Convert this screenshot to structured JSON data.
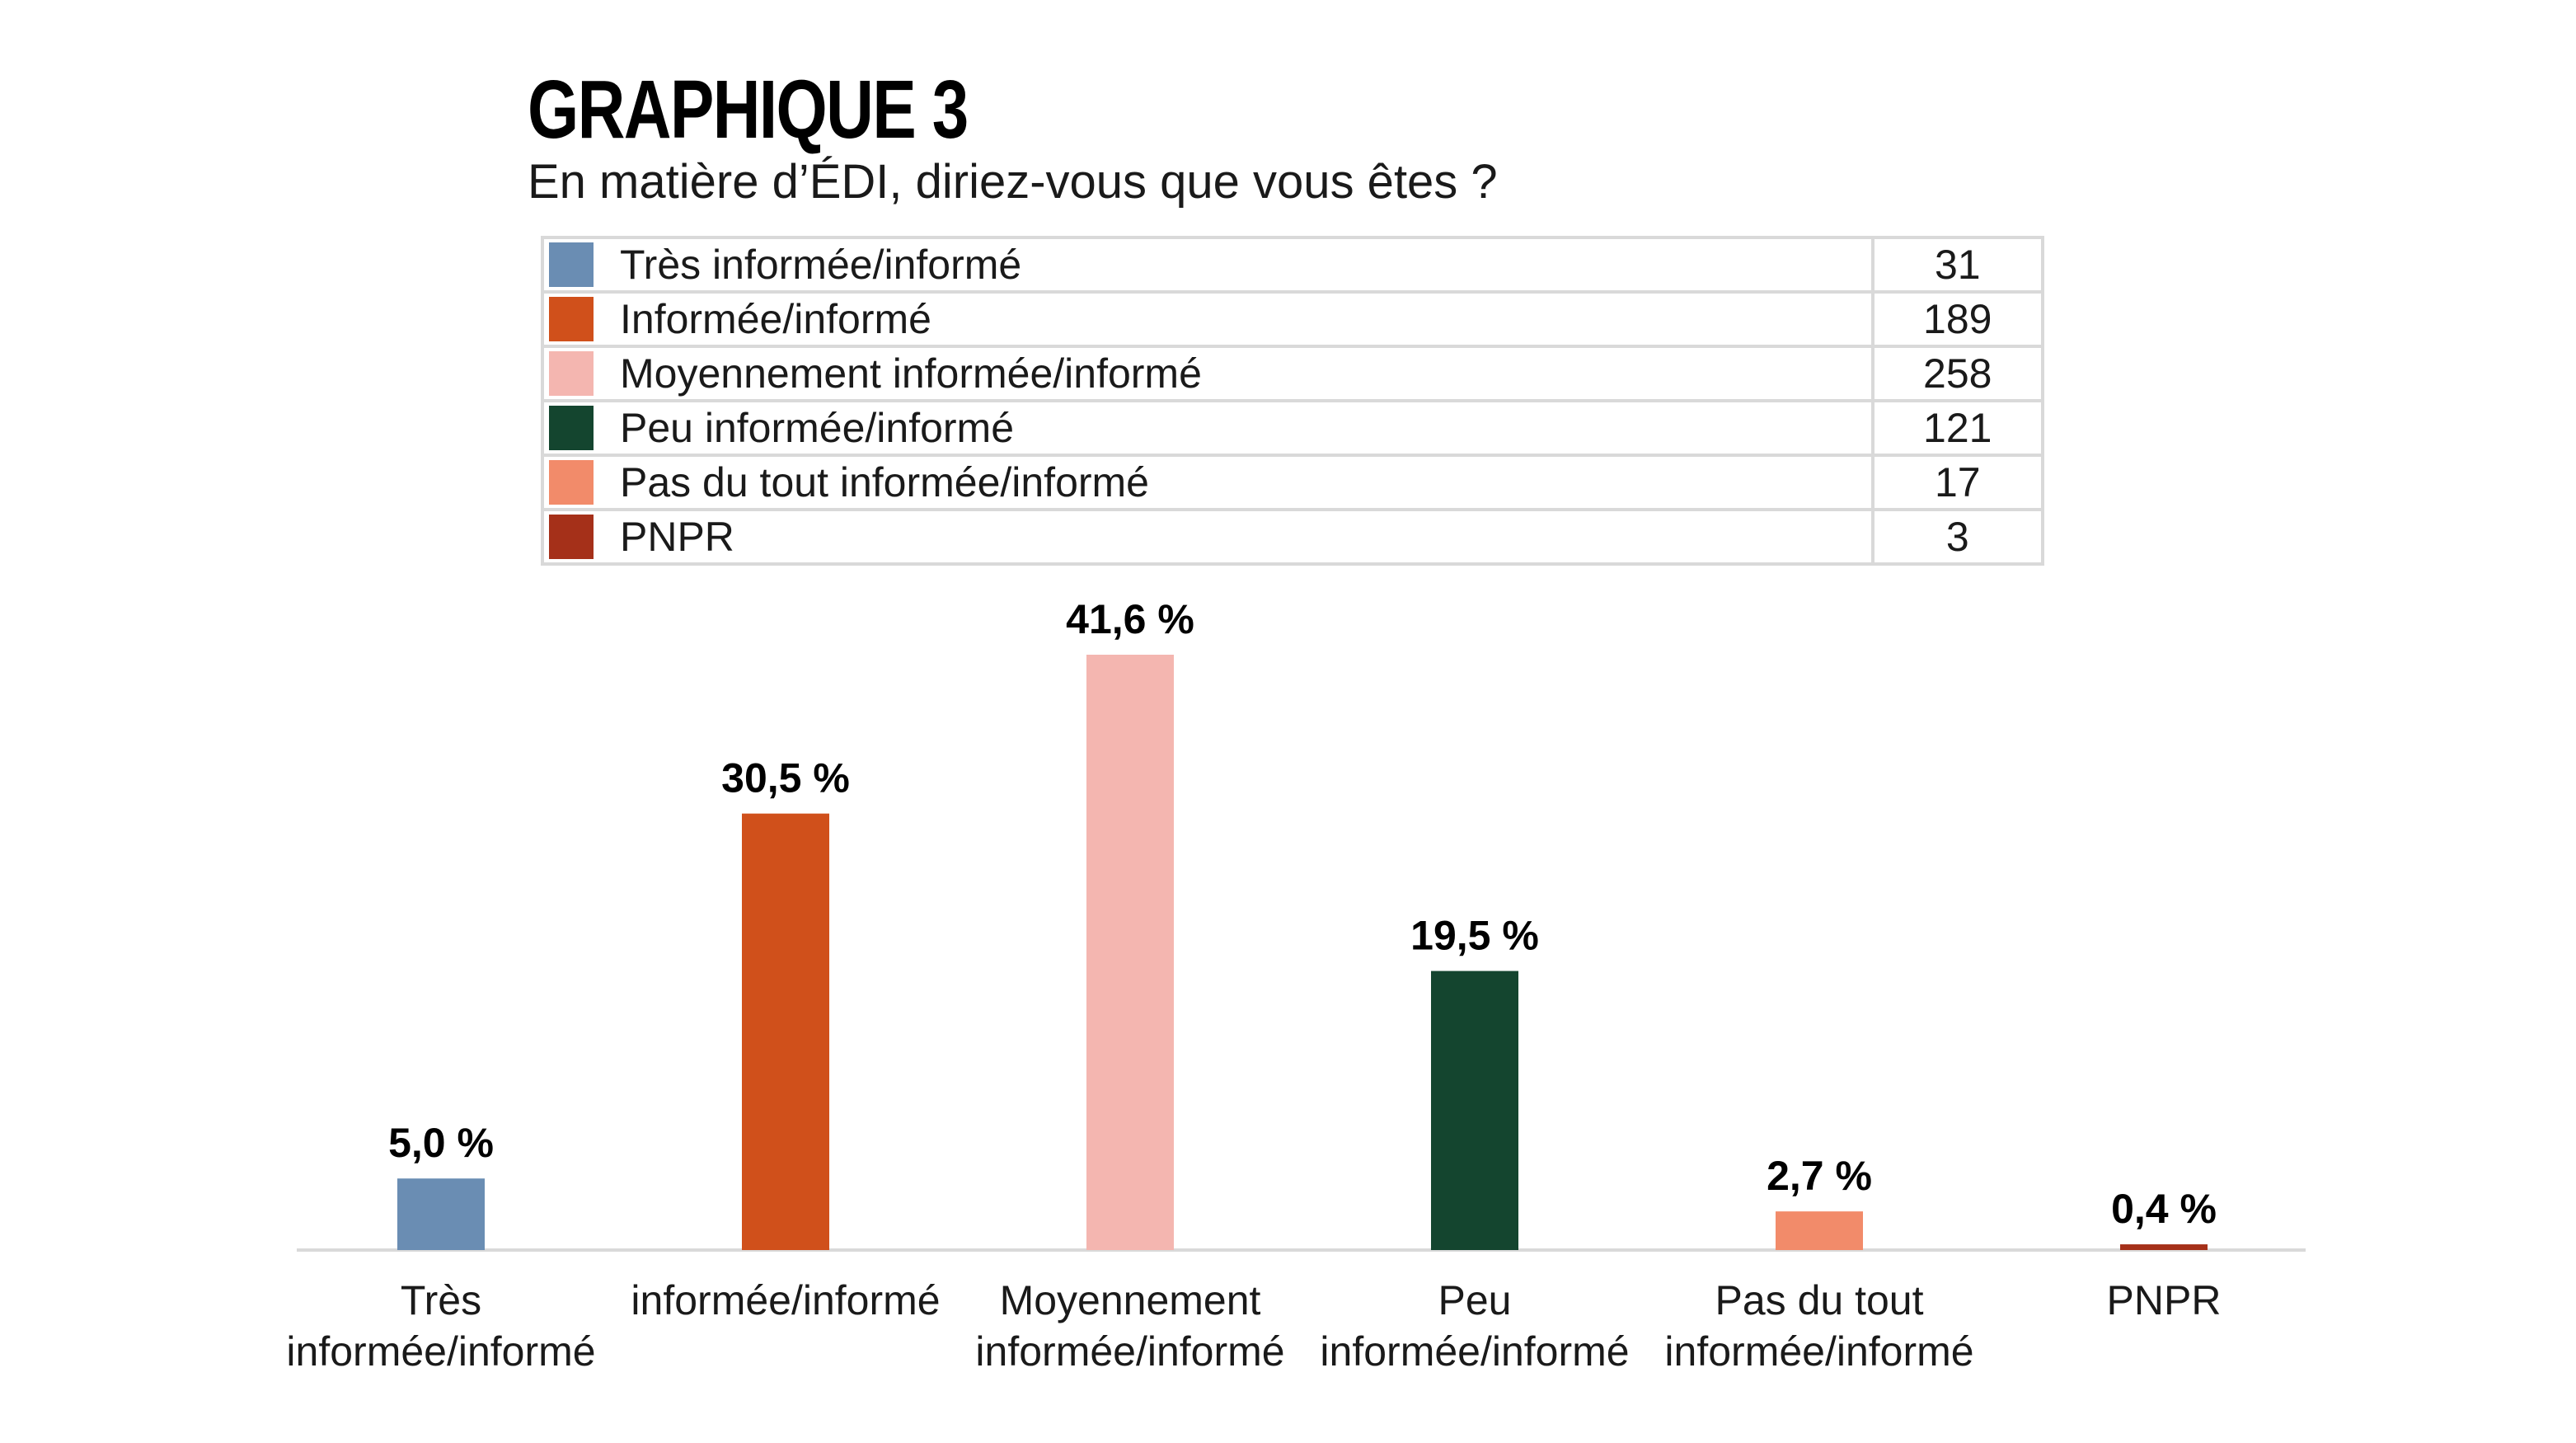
{
  "title": "GRAPHIQUE 3",
  "subtitle": "En matière d’ÉDI, diriez-vous que vous êtes ?",
  "legend": [
    {
      "label": "Très informée/informé",
      "count": "31",
      "color": "#6a8db3"
    },
    {
      "label": "Informée/informé",
      "count": "189",
      "color": "#d0501b"
    },
    {
      "label": "Moyennement informée/informé",
      "count": "258",
      "color": "#f4b6b0"
    },
    {
      "label": "Peu informée/informé",
      "count": "121",
      "color": "#14452f"
    },
    {
      "label": "Pas du tout informée/informé",
      "count": "17",
      "color": "#f28b6a"
    },
    {
      "label": "PNPR",
      "count": "3",
      "color": "#a53019"
    }
  ],
  "chart_data": {
    "type": "bar",
    "title": "GRAPHIQUE 3",
    "subtitle": "En matière d’ÉDI, diriez-vous que vous êtes ?",
    "categories": [
      [
        "Très",
        "informée/informé"
      ],
      [
        "informée/informé"
      ],
      [
        "Moyennement",
        "informée/informé"
      ],
      [
        "Peu",
        "informée/informé"
      ],
      [
        "Pas du tout",
        "informée/informé"
      ],
      [
        "PNPR"
      ]
    ],
    "values": [
      5.0,
      30.5,
      41.6,
      19.5,
      2.7,
      0.4
    ],
    "value_labels": [
      "5,0 %",
      "30,5 %",
      "41,6 %",
      "19,5 %",
      "2,7 %",
      "0,4 %"
    ],
    "colors": [
      "#6a8db3",
      "#d0501b",
      "#f4b6b0",
      "#14452f",
      "#f28b6a",
      "#a53019"
    ],
    "xlabel": "",
    "ylabel": "",
    "ylim": [
      0,
      41.6
    ],
    "grid": false,
    "axis_color": "#d9d9d9"
  }
}
